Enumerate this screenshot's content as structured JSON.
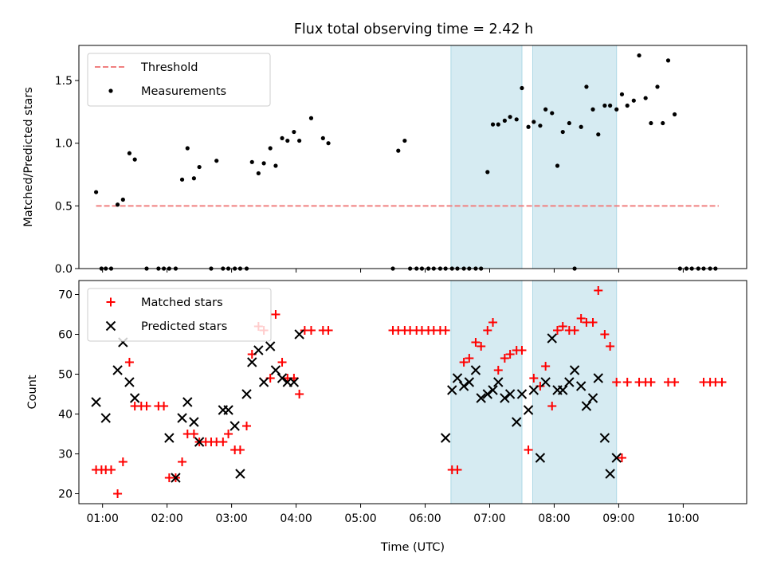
{
  "title": "Flux total observing time = 2.42 h",
  "chart_data": [
    {
      "type": "scatter",
      "ylabel": "Matched/Predicted stars",
      "xlim": [
        "00:38",
        "10:59"
      ],
      "ylim": [
        0,
        1.78
      ],
      "yticks": [
        "0.0",
        "0.5",
        "1.0",
        "1.5"
      ],
      "grid": false,
      "legend_position": "upper-left",
      "shaded_spans": [
        [
          "06:24",
          "07:30"
        ],
        [
          "07:40",
          "08:58"
        ]
      ],
      "threshold": {
        "name": "Threshold",
        "value": 0.5,
        "x_range": [
          "00:54",
          "10:33"
        ],
        "color": "#f08080"
      },
      "series": [
        {
          "name": "Measurements",
          "color": "#000000",
          "x": [
            "00:54",
            "00:59",
            "01:03",
            "01:08",
            "01:14",
            "01:19",
            "01:25",
            "01:30",
            "01:41",
            "01:52",
            "01:57",
            "02:02",
            "02:08",
            "02:14",
            "02:19",
            "02:25",
            "02:30",
            "02:41",
            "02:46",
            "02:52",
            "02:57",
            "03:03",
            "03:08",
            "03:14",
            "03:19",
            "03:25",
            "03:30",
            "03:36",
            "03:41",
            "03:47",
            "03:52",
            "03:58",
            "04:03",
            "04:14",
            "04:25",
            "04:30",
            "05:30",
            "05:35",
            "05:41",
            "05:46",
            "05:52",
            "05:57",
            "06:03",
            "06:08",
            "06:14",
            "06:19",
            "06:25",
            "06:30",
            "06:36",
            "06:41",
            "06:47",
            "06:52",
            "06:58",
            "07:03",
            "07:08",
            "07:14",
            "07:19",
            "07:25",
            "07:30",
            "07:36",
            "07:41",
            "07:47",
            "07:52",
            "07:58",
            "08:03",
            "08:08",
            "08:14",
            "08:19",
            "08:25",
            "08:30",
            "08:36",
            "08:41",
            "08:47",
            "08:52",
            "08:58",
            "09:03",
            "09:08",
            "09:14",
            "09:19",
            "09:25",
            "09:30",
            "09:36",
            "09:41",
            "09:46",
            "09:52",
            "09:57",
            "10:03",
            "10:08",
            "10:14",
            "10:19",
            "10:25",
            "10:30"
          ],
          "y": [
            0.61,
            0,
            0,
            0,
            0.51,
            0.55,
            0.92,
            0.87,
            0,
            0,
            0,
            0,
            0,
            0.71,
            0.96,
            0.72,
            0.81,
            0,
            0.86,
            0,
            0,
            0,
            0,
            0,
            0.85,
            0.76,
            0.84,
            0.96,
            0.82,
            1.04,
            1.02,
            1.09,
            1.02,
            1.2,
            1.04,
            1.0,
            0,
            0.94,
            1.02,
            0,
            0,
            0,
            0,
            0,
            0,
            0,
            0,
            0,
            0,
            0,
            0,
            0,
            0.77,
            1.15,
            1.15,
            1.18,
            1.21,
            1.19,
            1.44,
            1.13,
            1.17,
            1.14,
            1.27,
            1.24,
            0.82,
            1.09,
            1.16,
            0,
            1.13,
            1.45,
            1.27,
            1.07,
            1.3,
            1.3,
            1.27,
            1.39,
            1.3,
            1.34,
            1.7,
            1.36,
            1.16,
            1.45,
            1.16,
            1.66,
            1.23,
            0,
            0,
            0,
            0,
            0,
            0,
            0
          ]
        }
      ]
    },
    {
      "type": "scatter",
      "xlabel": "Time (UTC)",
      "ylabel": "Count",
      "xlim": [
        "00:38",
        "10:59"
      ],
      "ylim": [
        17.5,
        73.5
      ],
      "xticks": [
        "01:00",
        "02:00",
        "03:00",
        "04:00",
        "05:00",
        "06:00",
        "07:00",
        "08:00",
        "09:00",
        "10:00"
      ],
      "yticks": [
        "20",
        "30",
        "40",
        "50",
        "60",
        "70"
      ],
      "grid": false,
      "legend_position": "upper-left",
      "shaded_spans": [
        [
          "06:24",
          "07:30"
        ],
        [
          "07:40",
          "08:58"
        ]
      ],
      "series": [
        {
          "name": "Matched stars",
          "marker": "plus",
          "color": "#ff0000",
          "x": [
            "00:54",
            "00:59",
            "01:03",
            "01:08",
            "01:14",
            "01:19",
            "01:25",
            "01:30",
            "01:36",
            "01:41",
            "01:52",
            "01:57",
            "02:02",
            "02:08",
            "02:14",
            "02:19",
            "02:25",
            "02:30",
            "02:36",
            "02:41",
            "02:46",
            "02:52",
            "02:57",
            "03:03",
            "03:08",
            "03:14",
            "03:19",
            "03:25",
            "03:30",
            "03:36",
            "03:41",
            "03:47",
            "03:52",
            "03:58",
            "04:03",
            "04:08",
            "04:14",
            "04:25",
            "04:30",
            "05:30",
            "05:35",
            "05:41",
            "05:46",
            "05:52",
            "05:57",
            "06:03",
            "06:08",
            "06:14",
            "06:19",
            "06:25",
            "06:30",
            "06:36",
            "06:41",
            "06:47",
            "06:52",
            "06:58",
            "07:03",
            "07:08",
            "07:14",
            "07:19",
            "07:25",
            "07:30",
            "07:36",
            "07:41",
            "07:47",
            "07:52",
            "07:58",
            "08:03",
            "08:08",
            "08:14",
            "08:19",
            "08:25",
            "08:30",
            "08:36",
            "08:41",
            "08:47",
            "08:52",
            "08:58",
            "09:03",
            "09:08",
            "09:19",
            "09:25",
            "09:30",
            "09:46",
            "09:52",
            "10:19",
            "10:25",
            "10:30",
            "10:36"
          ],
          "y": [
            26,
            26,
            26,
            26,
            20,
            28,
            53,
            42,
            42,
            42,
            42,
            42,
            24,
            24,
            28,
            35,
            35,
            33,
            33,
            33,
            33,
            33,
            35,
            31,
            31,
            37,
            55,
            62,
            61,
            49,
            65,
            53,
            49,
            49,
            45,
            61,
            61,
            61,
            61,
            61,
            61,
            61,
            61,
            61,
            61,
            61,
            61,
            61,
            61,
            26,
            26,
            53,
            54,
            58,
            57,
            61,
            63,
            51,
            54,
            55,
            56,
            56,
            31,
            49,
            47,
            52,
            42,
            61,
            62,
            61,
            61,
            64,
            63,
            63,
            71,
            60,
            57,
            48,
            29,
            48,
            48,
            48,
            48,
            48,
            48,
            48,
            48,
            48,
            48
          ]
        },
        {
          "name": "Predicted stars",
          "marker": "x",
          "color": "#000000",
          "x": [
            "00:54",
            "01:03",
            "01:14",
            "01:19",
            "01:25",
            "01:30",
            "02:02",
            "02:08",
            "02:14",
            "02:19",
            "02:25",
            "02:30",
            "02:52",
            "02:57",
            "03:03",
            "03:08",
            "03:14",
            "03:19",
            "03:25",
            "03:30",
            "03:36",
            "03:41",
            "03:47",
            "03:52",
            "03:58",
            "04:03",
            "06:19",
            "06:25",
            "06:30",
            "06:36",
            "06:41",
            "06:47",
            "06:52",
            "06:58",
            "07:03",
            "07:08",
            "07:14",
            "07:19",
            "07:25",
            "07:30",
            "07:36",
            "07:41",
            "07:47",
            "07:52",
            "07:58",
            "08:03",
            "08:08",
            "08:14",
            "08:19",
            "08:25",
            "08:30",
            "08:36",
            "08:41",
            "08:47",
            "08:52",
            "08:58"
          ],
          "y": [
            43,
            39,
            51,
            58,
            48,
            44,
            34,
            24,
            39,
            43,
            38,
            33,
            41,
            41,
            37,
            25,
            45,
            53,
            56,
            48,
            57,
            51,
            49,
            48,
            48,
            60,
            34,
            46,
            49,
            47,
            48,
            51,
            44,
            45,
            46,
            48,
            44,
            45,
            38,
            45,
            41,
            46,
            29,
            48,
            59,
            46,
            46,
            48,
            51,
            47,
            42,
            44,
            49,
            34,
            25,
            29
          ]
        }
      ]
    }
  ]
}
